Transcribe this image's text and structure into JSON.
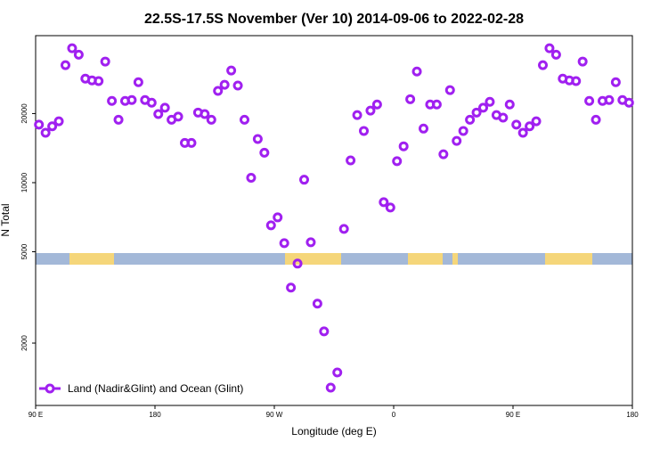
{
  "chart_data": {
    "type": "scatter",
    "title": "22.5S-17.5S November (Ver 10)   2014-09-06 to 2022-02-28",
    "x_label": "Longitude (deg E)",
    "y_label": "N Total",
    "y_scale": "log",
    "xlim": [
      90,
      540
    ],
    "ylim": [
      1070,
      43700
    ],
    "xticks": [
      {
        "value": 90,
        "label": "90 E"
      },
      {
        "value": 180,
        "label": "180"
      },
      {
        "value": 270,
        "label": "90 W"
      },
      {
        "value": 360,
        "label": "0"
      },
      {
        "value": 450,
        "label": "90 E"
      },
      {
        "value": 540,
        "label": "180"
      }
    ],
    "yticks": [
      2000,
      5000,
      10000,
      20000
    ],
    "legend_position": "lower left",
    "x": [
      92.5,
      97.5,
      102.5,
      107.5,
      112.5,
      117.5,
      122.5,
      127.5,
      132.5,
      137.5,
      142.5,
      147.5,
      152.5,
      157.5,
      162.5,
      167.5,
      172.5,
      177.5,
      182.5,
      187.5,
      192.5,
      197.5,
      202.5,
      207.5,
      212.5,
      217.5,
      222.5,
      227.5,
      232.5,
      237.5,
      242.5,
      247.5,
      252.5,
      257.5,
      262.5,
      267.5,
      272.5,
      277.5,
      282.5,
      287.5,
      292.5,
      297.5,
      302.5,
      307.5,
      312.5,
      317.5,
      322.5,
      327.5,
      332.5,
      337.5,
      342.5,
      347.5,
      352.5,
      357.5,
      362.5,
      367.5,
      372.5,
      377.5,
      382.5,
      387.5,
      392.5,
      397.5,
      402.5,
      407.5,
      412.5,
      417.5,
      422.5,
      427.5,
      432.5,
      437.5,
      442.5,
      447.5,
      452.5,
      457.5,
      462.5,
      467.5,
      472.5,
      477.5,
      482.5,
      487.5,
      492.5,
      497.5,
      502.5,
      507.5,
      512.5,
      517.5,
      522.5,
      527.5,
      532.5,
      537.5
    ],
    "series": [
      {
        "name": "Land (Nadir&Glint) and Ocean (Glint)",
        "color": "#a020f0",
        "values": [
          17900,
          16500,
          17600,
          18500,
          32500,
          38500,
          36100,
          28400,
          27900,
          27700,
          33700,
          22700,
          18800,
          22700,
          22900,
          27400,
          22900,
          22300,
          19900,
          21200,
          18800,
          19400,
          14900,
          14900,
          20200,
          19900,
          18800,
          25100,
          26700,
          30800,
          26500,
          18800,
          10500,
          15500,
          13500,
          6520,
          7060,
          5450,
          3490,
          4440,
          10300,
          5500,
          2970,
          2250,
          1280,
          1490,
          6290,
          12500,
          19700,
          16800,
          20600,
          21900,
          8220,
          7790,
          12400,
          14400,
          23100,
          30500,
          17200,
          21900,
          21900,
          13300,
          25300,
          15200,
          16800,
          18800,
          20200,
          21200,
          22500,
          19700,
          19200,
          21900,
          17900,
          16500,
          17600,
          18500,
          32500,
          38500,
          36100,
          28400,
          27900,
          27700,
          33700,
          22700,
          18800,
          22700,
          22900,
          27400,
          22900,
          22300
        ]
      }
    ]
  }
}
